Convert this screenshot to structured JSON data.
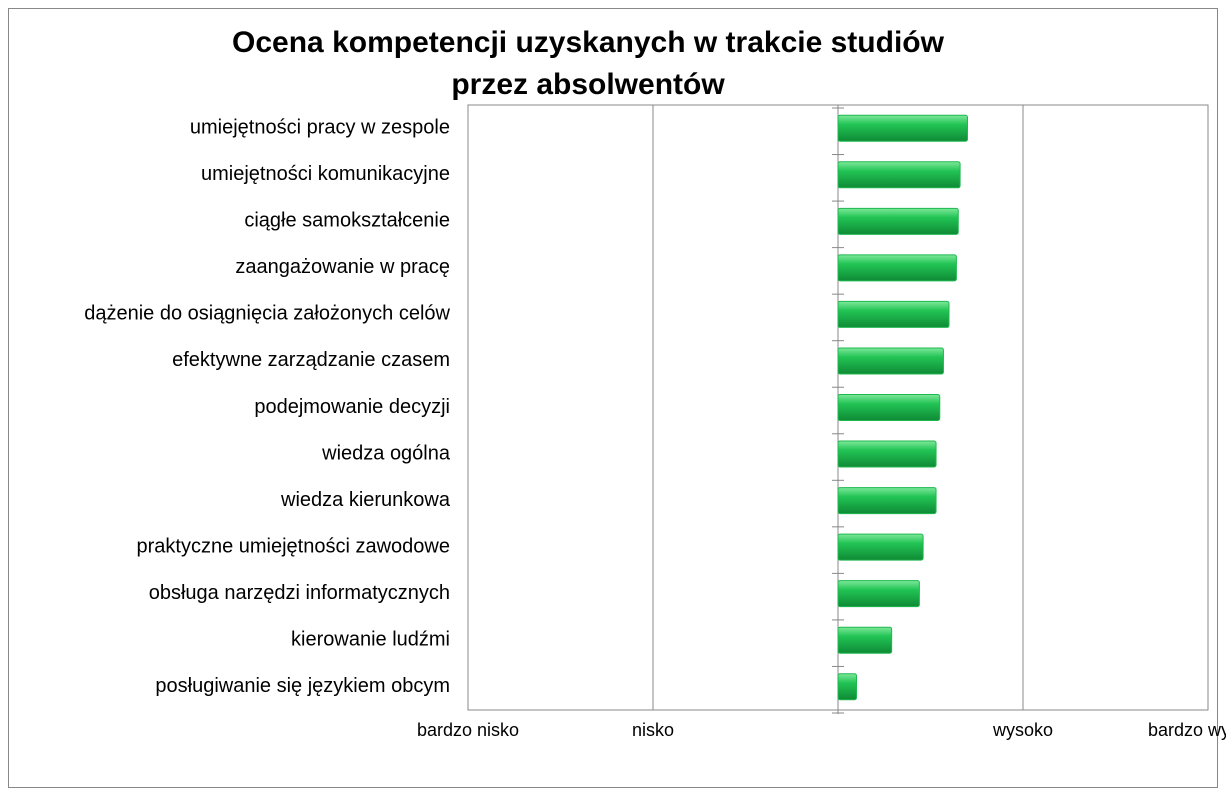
{
  "chart_data": {
    "type": "barh",
    "title": [
      "Ocena kompetencji uzyskanych w trakcie studiów",
      "przez absolwentów"
    ],
    "categories": [
      "umiejętności pracy w zespole",
      "umiejętności komunikacyjne",
      "ciągłe samokształcenie",
      "zaangażowanie w pracę",
      "dążenie do osiągnięcia założonych celów",
      "efektywne zarządzanie czasem",
      "podejmowanie decyzji",
      "wiedza ogólna",
      "wiedza kierunkowa",
      "praktyczne umiejętności zawodowe",
      "obsługa narzędzi informatycznych",
      "kierowanie ludźmi",
      "posługiwanie się językiem obcym"
    ],
    "values": [
      0.7,
      0.66,
      0.65,
      0.64,
      0.6,
      0.57,
      0.55,
      0.53,
      0.53,
      0.46,
      0.44,
      0.29,
      0.1
    ],
    "color": "#1fb84f",
    "xlim": [
      -2,
      2
    ],
    "xticks": [
      {
        "value": -2,
        "label": "bardzo nisko"
      },
      {
        "value": -1,
        "label": "nisko"
      },
      {
        "value": 1,
        "label": "wysoko"
      },
      {
        "value": 2,
        "label": "bardzo wysoko"
      }
    ],
    "grid": true
  }
}
